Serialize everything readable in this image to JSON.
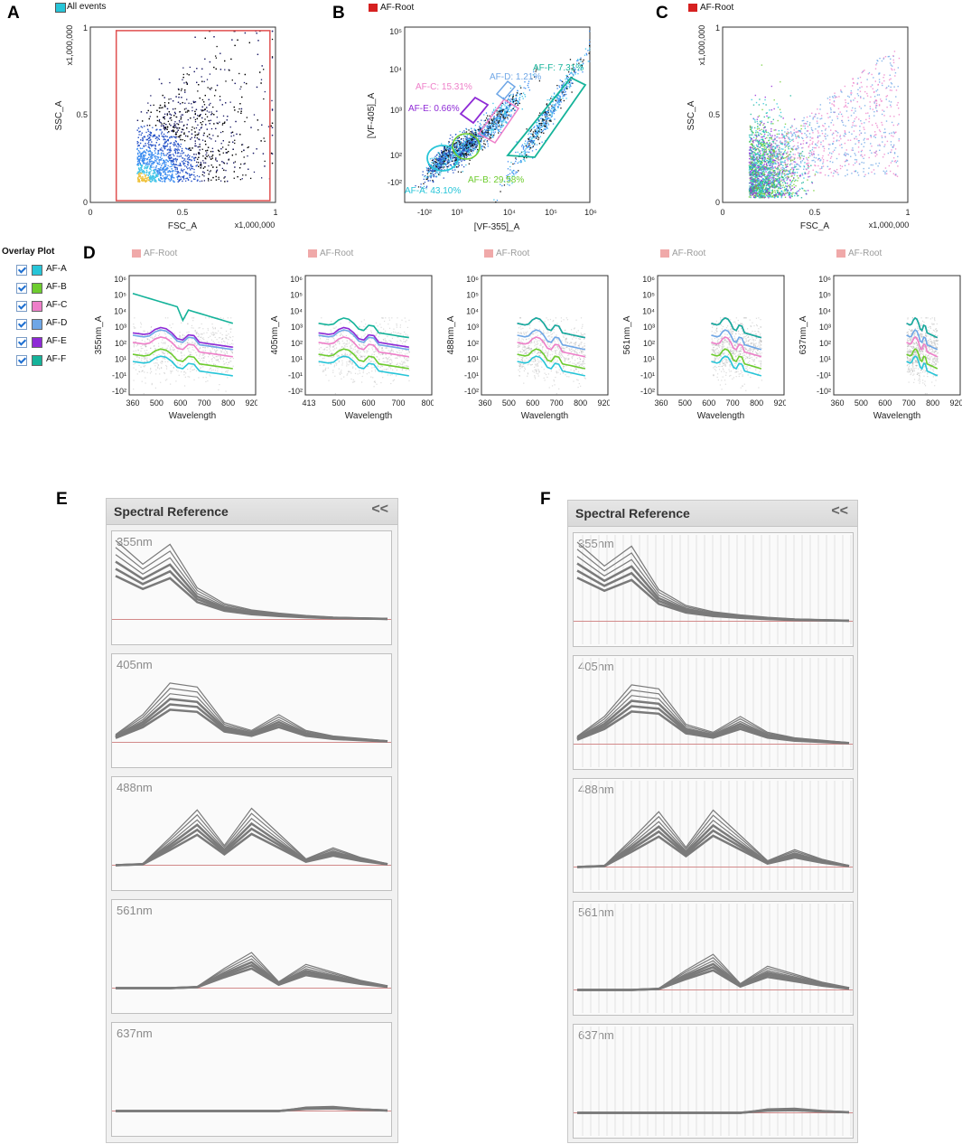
{
  "panel_labels": {
    "a": "A",
    "b": "B",
    "c": "C",
    "d": "D",
    "e": "E",
    "f": "F"
  },
  "colors": {
    "af_a": "#27c5d8",
    "af_b": "#6dcc2e",
    "af_c": "#ee7fc9",
    "af_d": "#6ea6e6",
    "af_e": "#8e2ad6",
    "af_f": "#15b39a",
    "root": "#d62020",
    "gate_red": "#e05050",
    "ref_line": "#7a7a7a"
  },
  "legends": {
    "all_events": "All events",
    "af_root": "AF-Root"
  },
  "overlay": {
    "title": "Overlay Plot",
    "items": [
      "AF-A",
      "AF-B",
      "AF-C",
      "AF-D",
      "AF-E",
      "AF-F"
    ]
  },
  "spectral_reference": {
    "title": "Spectral Reference",
    "collapse": "<<",
    "lasers": [
      "355nm",
      "405nm",
      "488nm",
      "561nm",
      "637nm"
    ]
  },
  "chart_data": [
    {
      "id": "A",
      "type": "scatter",
      "title": "All events",
      "xlabel": "FSC_A",
      "ylabel": "SSC_A",
      "xlim": [
        0,
        1
      ],
      "ylim": [
        0,
        1
      ],
      "x_ticks": [
        "0",
        "0.5",
        "1"
      ],
      "y_ticks": [
        "0",
        "0.5",
        "1"
      ],
      "x_scale_label": "x1,000,000",
      "y_scale_label": "x1,000,000",
      "gate": {
        "x": [
          0.14,
          0.97
        ],
        "y": [
          0.01,
          0.98
        ]
      }
    },
    {
      "id": "B",
      "type": "scatter",
      "title": "AF-Root",
      "xlabel": "[VF-355]_A",
      "ylabel": "[VF-405]_A",
      "x_ticks": [
        "-10²",
        "10³",
        "10⁴",
        "10⁵",
        "10⁶"
      ],
      "y_ticks": [
        "10⁵",
        "10⁴",
        "10³",
        "10²",
        "-10²"
      ],
      "gates": [
        {
          "name": "AF-A",
          "label": "AF-A: 43.10%",
          "percent": 43.1
        },
        {
          "name": "AF-B",
          "label": "AF-B: 29.58%",
          "percent": 29.58
        },
        {
          "name": "AF-C",
          "label": "AF-C: 15.31%",
          "percent": 15.31
        },
        {
          "name": "AF-D",
          "label": "AF-D: 1.21%",
          "percent": 1.21
        },
        {
          "name": "AF-E",
          "label": "AF-E: 0.66%",
          "percent": 0.66
        },
        {
          "name": "AF-F",
          "label": "AF-F: 7.31%",
          "percent": 7.31
        }
      ]
    },
    {
      "id": "C",
      "type": "scatter",
      "title": "AF-Root",
      "xlabel": "FSC_A",
      "ylabel": "SSC_A",
      "xlim": [
        0,
        1
      ],
      "ylim": [
        0,
        1
      ],
      "x_ticks": [
        "0",
        "0.5",
        "1"
      ],
      "y_ticks": [
        "0",
        "0.5",
        "1"
      ],
      "x_scale_label": "x1,000,000",
      "y_scale_label": "x1,000,000"
    },
    {
      "id": "D",
      "type": "line",
      "series_names": [
        "AF-A",
        "AF-B",
        "AF-C",
        "AF-D",
        "AF-E",
        "AF-F"
      ],
      "y_ticks": [
        "10⁶",
        "10⁵",
        "10⁴",
        "10³",
        "10²",
        "10¹",
        "-10¹",
        "-10²"
      ],
      "xlabel": "Wavelength",
      "panels": [
        {
          "ylabel": "355nm_A",
          "legend": "AF-Root",
          "x_ticks": [
            "360",
            "500",
            "600",
            "700",
            "800",
            "920"
          ]
        },
        {
          "ylabel": "405nm_A",
          "legend": "AF-Root",
          "x_ticks": [
            "413",
            "500",
            "600",
            "700",
            "800"
          ]
        },
        {
          "ylabel": "488nm_A",
          "legend": "AF-Root",
          "x_ticks": [
            "360",
            "500",
            "600",
            "700",
            "800",
            "920"
          ]
        },
        {
          "ylabel": "561nm_A",
          "legend": "AF-Root",
          "x_ticks": [
            "360",
            "500",
            "600",
            "700",
            "800",
            "920"
          ]
        },
        {
          "ylabel": "637nm_A",
          "legend": "AF-Root",
          "x_ticks": [
            "360",
            "500",
            "600",
            "700",
            "800",
            "920"
          ]
        }
      ]
    }
  ]
}
